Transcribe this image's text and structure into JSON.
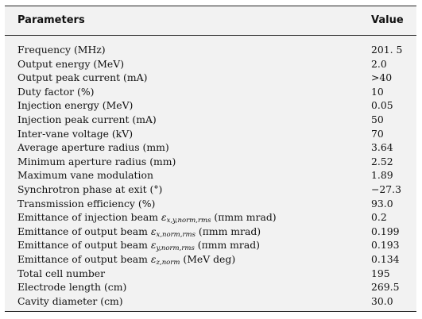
{
  "table": {
    "header": {
      "parameter": "Parameters",
      "value": "Value"
    },
    "rows": [
      {
        "label": "Frequency (MHz)",
        "value": "201. 5"
      },
      {
        "label": "Output energy (MeV)",
        "value": "2.0"
      },
      {
        "label": "Output peak current (mA)",
        "value": ">40"
      },
      {
        "label": "Duty factor (%)",
        "value": "10"
      },
      {
        "label": "Injection energy (MeV)",
        "value": "0.05"
      },
      {
        "label": "Injection peak current (mA)",
        "value": "50"
      },
      {
        "label": "Inter-vane voltage (kV)",
        "value": "70"
      },
      {
        "label": "Average aperture radius (mm)",
        "value": "3.64"
      },
      {
        "label": "Minimum aperture radius (mm)",
        "value": "2.52"
      },
      {
        "label": "Maximum vane modulation",
        "value": "1.89"
      },
      {
        "label": "Synchrotron phase at exit (°)",
        "value": "−27.3"
      },
      {
        "label": "Transmission efficiency (%)",
        "value": "93.0"
      },
      {
        "label_pre": "Emittance of injection beam ",
        "symbol": "ε",
        "subscript": "x,y,norm,rms",
        "label_post": " (πmm mrad)",
        "value": "0.2"
      },
      {
        "label_pre": "Emittance of output beam ",
        "symbol": "ε",
        "subscript": "x,norm,rms",
        "label_post": " (πmm mrad)",
        "value": "0.199"
      },
      {
        "label_pre": "Emittance of output beam ",
        "symbol": "ε",
        "subscript": "y,norm,rms",
        "label_post": " (πmm mrad)",
        "value": "0.193"
      },
      {
        "label_pre": "Emittance of output beam ",
        "symbol": "ε",
        "subscript": "z,norm",
        "label_post": " (MeV deg)",
        "value": "0.134"
      },
      {
        "label": "Total cell number",
        "value": "195"
      },
      {
        "label": "Electrode length (cm)",
        "value": "269.5"
      },
      {
        "label": "Cavity diameter (cm)",
        "value": "30.0"
      }
    ]
  }
}
